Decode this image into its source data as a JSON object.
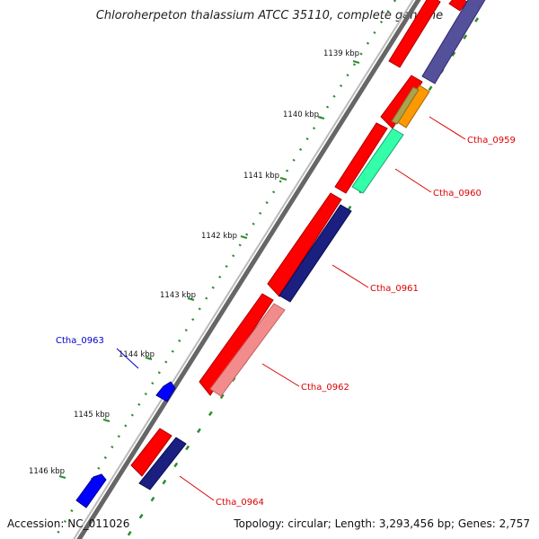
{
  "title": "Chloroherpeton thalassium ATCC 35110, complete genome",
  "accession_label": "Accession: NC_011026",
  "summary_label": "Topology: circular; Length: 3,293,456 bp; Genes: 2,757",
  "colors": {
    "backbone": "#888888",
    "tick": "#2e8b2e",
    "label_red": "#dd0000",
    "label_blue": "#0000cc"
  },
  "ticks": [
    "1139 kbp",
    "1140 kbp",
    "1141 kbp",
    "1142 kbp",
    "1143 kbp",
    "1144 kbp",
    "1145 kbp",
    "1146 kbp"
  ],
  "gene_labels": [
    "Ctha_0959",
    "Ctha_0960",
    "Ctha_0961",
    "Ctha_0962",
    "Ctha_0963",
    "Ctha_0964"
  ]
}
